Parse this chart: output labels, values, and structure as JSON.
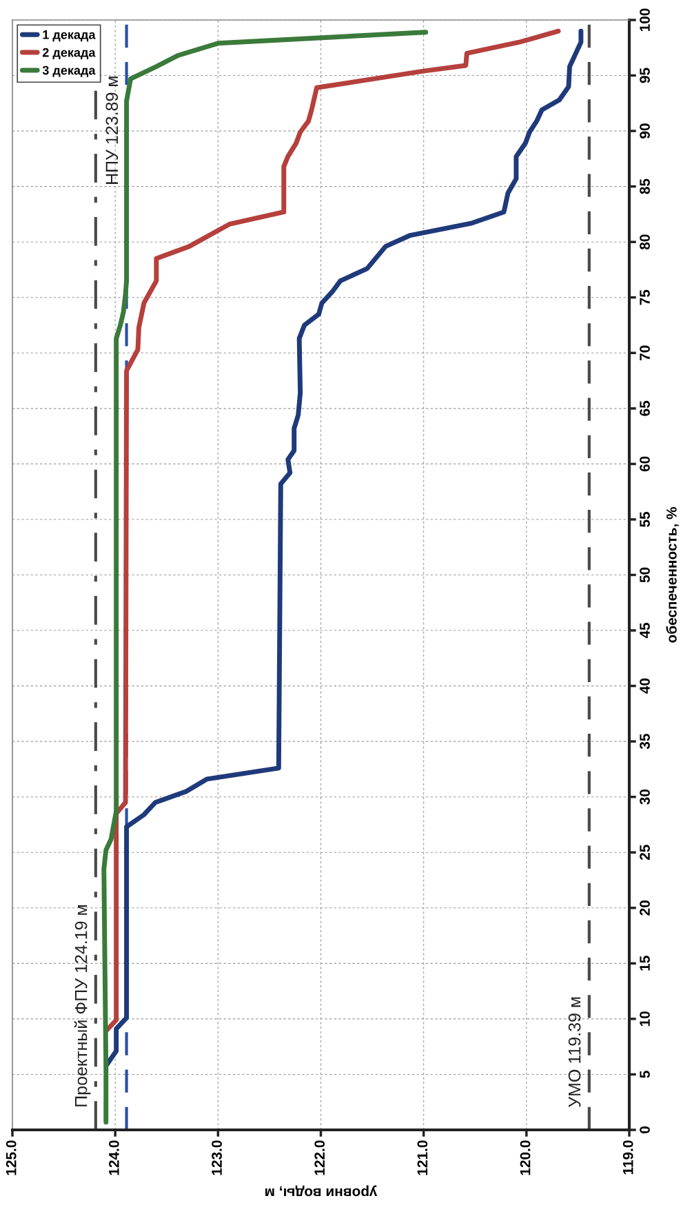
{
  "chart_data": {
    "type": "line",
    "xlabel": "уровни воды, м",
    "ylabel": "обеспеченность, %",
    "xlim": [
      125,
      119
    ],
    "xticks": [
      {
        "value": 125,
        "label": "125.0"
      },
      {
        "value": 124,
        "label": "124.0"
      },
      {
        "value": 123,
        "label": "123.0"
      },
      {
        "value": 122,
        "label": "122.0"
      },
      {
        "value": 121,
        "label": "121.0"
      },
      {
        "value": 120,
        "label": "120.0"
      },
      {
        "value": 119,
        "label": "119.0"
      }
    ],
    "ylim": [
      0,
      100
    ],
    "yticks": [
      0,
      5,
      10,
      15,
      20,
      25,
      30,
      35,
      40,
      45,
      50,
      55,
      60,
      65,
      70,
      75,
      80,
      85,
      90,
      95,
      100
    ],
    "grid": true,
    "legend": "top left",
    "line_style": "solid",
    "marker": "none",
    "series": [
      {
        "name": "1 декада",
        "color": "#1f3a7a",
        "values": [
          5.9,
          7.1,
          9.1,
          10.1,
          27.3,
          28.4,
          29.5,
          30.5,
          31.6,
          32.6,
          58.2,
          59.2,
          60.4,
          61.2,
          63.2,
          64.4,
          66.4,
          71.3,
          72.5,
          73.5,
          74.5,
          75.5,
          76.5,
          77.6,
          79.6,
          80.6,
          81.7,
          82.7,
          84.4,
          85.7,
          87.7,
          88.9,
          89.9,
          90.9,
          91.9,
          92.8,
          94.0,
          95.8,
          98.0,
          99.0
        ],
        "x": [
          124.08,
          123.99,
          123.99,
          123.89,
          123.89,
          123.72,
          123.61,
          123.31,
          123.11,
          122.41,
          122.39,
          122.3,
          122.32,
          122.26,
          122.26,
          122.22,
          122.2,
          122.21,
          122.16,
          122.02,
          121.99,
          121.89,
          121.81,
          121.55,
          121.37,
          121.13,
          120.53,
          120.22,
          120.18,
          120.1,
          120.1,
          120.01,
          119.97,
          119.9,
          119.85,
          119.68,
          119.59,
          119.58,
          119.47,
          119.47
        ]
      },
      {
        "name": "2 декада",
        "color": "#b5403c",
        "values": [
          9.0,
          9.9,
          28.5,
          29.5,
          68.4,
          70.3,
          72.3,
          74.5,
          76.5,
          78.5,
          79.6,
          81.6,
          82.7,
          86.8,
          87.7,
          88.9,
          89.9,
          90.9,
          91.9,
          93.9,
          95.4,
          95.9,
          97.0,
          98.0,
          99.0
        ],
        "x": [
          124.08,
          123.99,
          123.99,
          123.9,
          123.89,
          123.78,
          123.77,
          123.72,
          123.6,
          123.6,
          123.28,
          122.89,
          122.36,
          122.36,
          122.32,
          122.24,
          122.2,
          122.12,
          122.09,
          122.04,
          121.0,
          120.59,
          120.58,
          120.07,
          119.69
        ]
      },
      {
        "name": "3 декада",
        "color": "#3a7a3a",
        "values": [
          0.7,
          5.5,
          23.5,
          25.2,
          26.2,
          28.7,
          71.3,
          72.5,
          73.7,
          75.3,
          76.5,
          92.7,
          94.7,
          95.8,
          96.8,
          97.9,
          98.9
        ],
        "x": [
          124.09,
          124.09,
          124.11,
          124.09,
          124.04,
          123.99,
          123.99,
          123.95,
          123.92,
          123.9,
          123.89,
          123.89,
          123.85,
          123.6,
          123.39,
          123.0,
          120.98
        ]
      }
    ],
    "ref_lines": [
      {
        "axis": "x",
        "value": 124.19,
        "label": "Проектный ФПУ 124.19 м",
        "color": "#4a4a4a",
        "line_style": "dashdot"
      },
      {
        "axis": "x",
        "value": 123.89,
        "label": "НПУ 123.89 м",
        "color": "#2a4fa8",
        "line_style": "dashed"
      },
      {
        "axis": "x",
        "value": 119.39,
        "label": "УМО 119.39 м",
        "color": "#4a4a4a",
        "line_style": "dashed"
      }
    ]
  }
}
